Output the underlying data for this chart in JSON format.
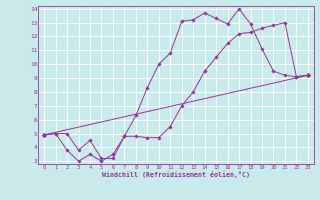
{
  "xlabel": "Windchill (Refroidissement éolien,°C)",
  "bg_color": "#c8eaea",
  "line_color": "#993399",
  "grid_color": "#ffffff",
  "xlim": [
    -0.5,
    23.5
  ],
  "ylim": [
    2.8,
    14.2
  ],
  "xticks": [
    0,
    1,
    2,
    3,
    4,
    5,
    6,
    7,
    8,
    9,
    10,
    11,
    12,
    13,
    14,
    15,
    16,
    17,
    18,
    19,
    20,
    21,
    22,
    23
  ],
  "yticks": [
    3,
    4,
    5,
    6,
    7,
    8,
    9,
    10,
    11,
    12,
    13,
    14
  ],
  "line1_x": [
    0,
    1,
    2,
    3,
    4,
    5,
    6,
    7,
    8,
    9,
    10,
    11,
    12,
    13,
    14,
    15,
    16,
    17,
    18,
    19,
    20,
    21,
    22,
    23
  ],
  "line1_y": [
    4.9,
    5.0,
    5.0,
    3.8,
    4.5,
    3.2,
    3.2,
    4.8,
    6.3,
    8.3,
    10.0,
    10.8,
    13.1,
    13.2,
    13.7,
    13.3,
    12.9,
    14.0,
    12.9,
    11.1,
    9.5,
    9.2,
    9.1,
    9.2
  ],
  "line2_x": [
    0,
    1,
    2,
    3,
    4,
    5,
    6,
    7,
    8,
    9,
    10,
    11,
    12,
    13,
    14,
    15,
    16,
    17,
    18,
    19,
    20,
    21,
    22,
    23
  ],
  "line2_y": [
    4.9,
    5.0,
    3.8,
    3.0,
    3.5,
    3.0,
    3.5,
    4.8,
    4.8,
    4.7,
    4.7,
    5.5,
    7.0,
    8.0,
    9.5,
    10.5,
    11.5,
    12.2,
    12.3,
    12.6,
    12.8,
    13.0,
    9.1,
    9.2
  ],
  "line3_x": [
    0,
    23
  ],
  "line3_y": [
    4.9,
    9.2
  ]
}
